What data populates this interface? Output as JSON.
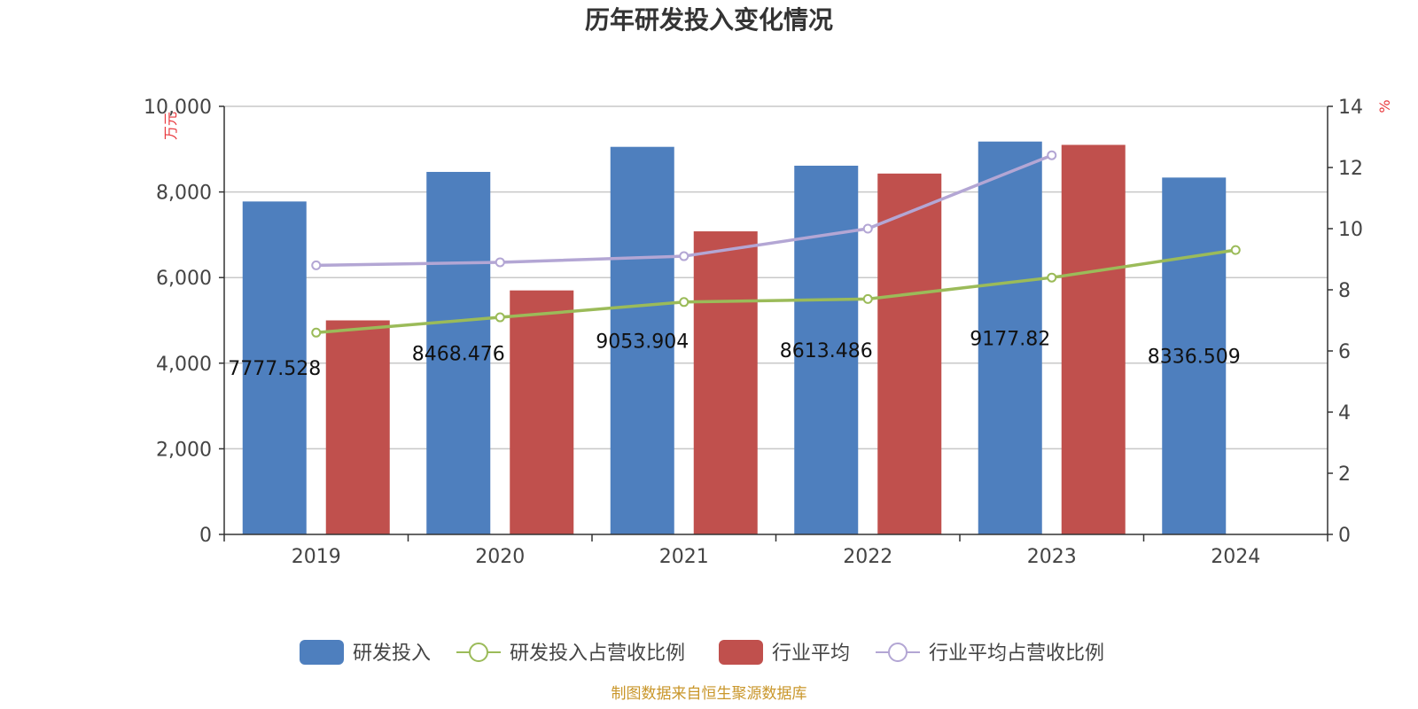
{
  "chart_data": {
    "type": "bar",
    "title": "历年研发投入变化情况",
    "categories": [
      "2019",
      "2020",
      "2021",
      "2022",
      "2023",
      "2024"
    ],
    "left_axis": {
      "unit": "万元",
      "min": 0,
      "max": 10000,
      "ticks": [
        0,
        2000,
        4000,
        6000,
        8000,
        10000
      ],
      "tick_labels": [
        "0",
        "2,000",
        "4,000",
        "6,000",
        "8,000",
        "10,000"
      ]
    },
    "right_axis": {
      "unit": "%",
      "min": 0,
      "max": 14,
      "ticks": [
        0,
        2,
        4,
        6,
        8,
        10,
        12,
        14
      ],
      "tick_labels": [
        "0",
        "2",
        "4",
        "6",
        "8",
        "10",
        "12",
        "14"
      ]
    },
    "grid": true,
    "series": [
      {
        "name": "研发投入",
        "type": "bar",
        "axis": "left",
        "color": "#4e7fbe",
        "values": [
          7777.528,
          8468.476,
          9053.904,
          8613.486,
          9177.82,
          8336.509
        ],
        "labels": [
          "7777.528",
          "8468.476",
          "9053.904",
          "8613.486",
          "9177.82",
          "8336.509"
        ]
      },
      {
        "name": "研发投入占营收比例",
        "type": "line",
        "axis": "right",
        "color": "#9bbb59",
        "values": [
          6.6,
          7.1,
          7.6,
          7.7,
          8.4,
          9.3
        ]
      },
      {
        "name": "行业平均",
        "type": "bar",
        "axis": "left",
        "color": "#c0504d",
        "values": [
          5000,
          5700,
          7080,
          8430,
          9100,
          null
        ]
      },
      {
        "name": "行业平均占营收比例",
        "type": "line",
        "axis": "right",
        "color": "#b3a6d4",
        "values": [
          8.8,
          8.9,
          9.1,
          10.0,
          12.4,
          null
        ]
      }
    ],
    "legend_position": "bottom-center",
    "source": "制图数据来自恒生聚源数据库"
  }
}
